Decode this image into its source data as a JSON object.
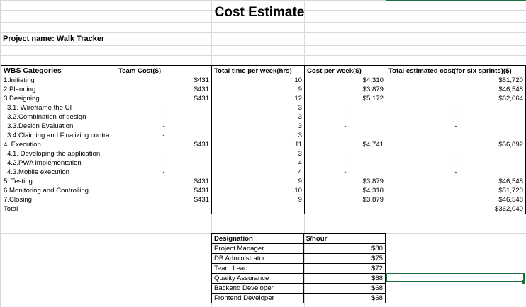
{
  "title": "Cost Estimate",
  "project_label": "Project name: Walk Tracker",
  "headers": {
    "wbs": "WBS Categories",
    "team_cost": "Team Cost($)",
    "time": "Total time per week(hrs)",
    "cost_week": "Cost per week($)",
    "total": "Total estimated cost(for six sprints)($)"
  },
  "rows": [
    {
      "category": "1.Initiating",
      "team_cost": "$431",
      "time": "10",
      "cost_week": "$4,310",
      "total": "$51,720"
    },
    {
      "category": "2.Planning",
      "team_cost": "$431",
      "time": "9",
      "cost_week": "$3,879",
      "total": "$46,548"
    },
    {
      "category": "3.Designing",
      "team_cost": "$431",
      "time": "12",
      "cost_week": "$5,172",
      "total": "$62,064"
    },
    {
      "category": "3.1. Wireframe the UI",
      "team_cost": "-",
      "time": "3",
      "cost_week": "-",
      "total": "-"
    },
    {
      "category": "3.2.Combination of design",
      "team_cost": "-",
      "time": "3",
      "cost_week": "-",
      "total": "-"
    },
    {
      "category": "3.3.Design Evaluation",
      "team_cost": "-",
      "time": "3",
      "cost_week": "-",
      "total": "-"
    },
    {
      "category": "3.4.Claiming and Finalizing contra",
      "team_cost": "-",
      "time": "3",
      "cost_week": "",
      "total": ""
    },
    {
      "category": "4. Execution",
      "team_cost": "$431",
      "time": "11",
      "cost_week": "$4,741",
      "total": "$56,892"
    },
    {
      "category": "4.1. Developing the application",
      "team_cost": "-",
      "time": "3",
      "cost_week": "-",
      "total": "-"
    },
    {
      "category": "4.2.PWA implementation",
      "team_cost": "-",
      "time": "4",
      "cost_week": "-",
      "total": "-"
    },
    {
      "category": "4.3.Mobile execution",
      "team_cost": "-",
      "time": "4",
      "cost_week": "-",
      "total": "-"
    },
    {
      "category": "5. Testing",
      "team_cost": "$431",
      "time": "9",
      "cost_week": "$3,879",
      "total": "$46,548"
    },
    {
      "category": "6.Monitoring and Controlling",
      "team_cost": "$431",
      "time": "10",
      "cost_week": "$4,310",
      "total": "$51,720"
    },
    {
      "category": "7.Closing",
      "team_cost": "$431",
      "time": "9",
      "cost_week": "$3,879",
      "total": "$46,548"
    },
    {
      "category": "Total",
      "team_cost": "",
      "time": "",
      "cost_week": "",
      "total": "$362,040"
    }
  ],
  "rates": {
    "header_designation": "Designation",
    "header_rate": "$/hour",
    "items": [
      {
        "designation": "Project Manager",
        "rate": "$80"
      },
      {
        "designation": "DB Administrator",
        "rate": "$75"
      },
      {
        "designation": "Team Lead",
        "rate": "$72"
      },
      {
        "designation": "Quality Assurance",
        "rate": "$68"
      },
      {
        "designation": "Backend Developer",
        "rate": "$68"
      },
      {
        "designation": "Frontend Developer",
        "rate": "$68"
      }
    ]
  }
}
